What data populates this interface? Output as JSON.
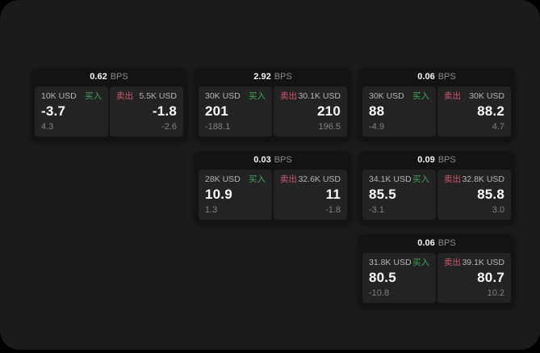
{
  "labels": {
    "bps_unit": "BPS",
    "buy": "买入",
    "sell": "卖出"
  },
  "colors": {
    "window_background": "#1b1b1c",
    "card_background": "#131314",
    "panel_background": "#232324",
    "buy_accent": "#3fa457",
    "sell_accent": "#ce5a6c",
    "primary_text": "#fafafa",
    "muted_text": "#828282"
  },
  "cards": [
    {
      "bps": "0.62",
      "buy": {
        "amount": "10K USD",
        "price": "-3.7",
        "sub": "4.3"
      },
      "sell": {
        "amount": "5.5K USD",
        "price": "-1.8",
        "sub": "-2.6"
      }
    },
    {
      "bps": "2.92",
      "buy": {
        "amount": "30K USD",
        "price": "201",
        "sub": "-188.1"
      },
      "sell": {
        "amount": "30.1K USD",
        "price": "210",
        "sub": "196.5"
      }
    },
    {
      "bps": "0.06",
      "buy": {
        "amount": "30K USD",
        "price": "88",
        "sub": "-4.9"
      },
      "sell": {
        "amount": "30K USD",
        "price": "88.2",
        "sub": "4.7"
      }
    },
    {
      "bps": "0.03",
      "buy": {
        "amount": "28K USD",
        "price": "10.9",
        "sub": "1.3"
      },
      "sell": {
        "amount": "32.6K USD",
        "price": "11",
        "sub": "-1.8"
      }
    },
    {
      "bps": "0.09",
      "buy": {
        "amount": "34.1K USD",
        "price": "85.5",
        "sub": "-3.1"
      },
      "sell": {
        "amount": "32.8K USD",
        "price": "85.8",
        "sub": "3.0"
      }
    },
    {
      "bps": "0.06",
      "buy": {
        "amount": "31.8K USD",
        "price": "80.5",
        "sub": "-10.8"
      },
      "sell": {
        "amount": "39.1K USD",
        "price": "80.7",
        "sub": "10.2"
      }
    }
  ]
}
